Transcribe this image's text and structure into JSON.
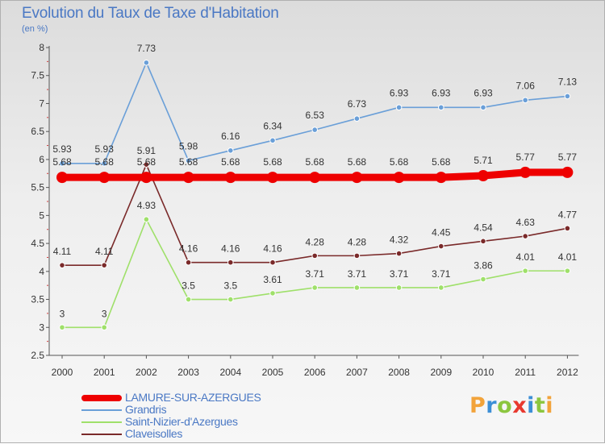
{
  "header": {
    "title": "Evolution du Taux de Taxe d'Habitation",
    "subtitle": "(en %)"
  },
  "brand": {
    "letters": [
      "P",
      "r",
      "o",
      "x",
      "i",
      "t",
      "i"
    ],
    "colors": [
      "#f2a33a",
      "#3c8fd6",
      "#8cc63f",
      "#e8392f",
      "#3c8fd6",
      "#8cc63f",
      "#f2a33a"
    ]
  },
  "chart_data": {
    "type": "line",
    "title": "Evolution du Taux de Taxe d'Habitation",
    "subtitle": "(en %)",
    "xlabel": "",
    "ylabel": "",
    "x": [
      "2000",
      "2001",
      "2002",
      "2003",
      "2004",
      "2005",
      "2006",
      "2007",
      "2008",
      "2009",
      "2010",
      "2011",
      "2012"
    ],
    "ylim": [
      2.5,
      8
    ],
    "yticks": [
      "2.5",
      "3",
      "3.5",
      "4",
      "4.5",
      "5",
      "5.5",
      "6",
      "6.5",
      "7",
      "7.5",
      "8"
    ],
    "grid": "none",
    "legend_position": "bottom-left",
    "series": [
      {
        "name": "LAMURE-SUR-AZERGUES",
        "color": "#ee0000",
        "values": [
          5.68,
          5.68,
          5.68,
          5.68,
          5.68,
          5.68,
          5.68,
          5.68,
          5.68,
          5.68,
          5.71,
          5.77,
          5.77
        ],
        "labels": [
          "5.68",
          "5.68",
          "5.68",
          "5.68",
          "5.68",
          "5.68",
          "5.68",
          "5.68",
          "5.68",
          "5.68",
          "5.71",
          "5.77",
          "5.77"
        ]
      },
      {
        "name": "Grandris",
        "color": "#6a9fd8",
        "values": [
          5.93,
          5.93,
          7.73,
          5.98,
          6.16,
          6.34,
          6.53,
          6.73,
          6.93,
          6.93,
          6.93,
          7.06,
          7.13
        ],
        "labels": [
          "5.93",
          "5.93",
          "7.73",
          "5.98",
          "6.16",
          "6.34",
          "6.53",
          "6.73",
          "6.93",
          "6.93",
          "6.93",
          "7.06",
          "7.13"
        ]
      },
      {
        "name": "Saint-Nizier-d'Azergues",
        "color": "#9fe06a",
        "values": [
          3,
          3,
          4.93,
          3.5,
          3.5,
          3.61,
          3.71,
          3.71,
          3.71,
          3.71,
          3.86,
          4.01,
          4.01
        ],
        "labels": [
          "3",
          "3",
          "4.93",
          "3.5",
          "3.5",
          "3.61",
          "3.71",
          "3.71",
          "3.71",
          "3.71",
          "3.86",
          "4.01",
          "4.01"
        ]
      },
      {
        "name": "Claveisolles",
        "color": "#7a2a2a",
        "values": [
          4.11,
          4.11,
          5.91,
          4.16,
          4.16,
          4.16,
          4.28,
          4.28,
          4.32,
          4.45,
          4.54,
          4.63,
          4.77
        ],
        "labels": [
          "4.11",
          "4.11",
          "5.91",
          "4.16",
          "4.16",
          "4.16",
          "4.28",
          "4.28",
          "4.32",
          "4.45",
          "4.54",
          "4.63",
          "4.77"
        ]
      }
    ]
  }
}
